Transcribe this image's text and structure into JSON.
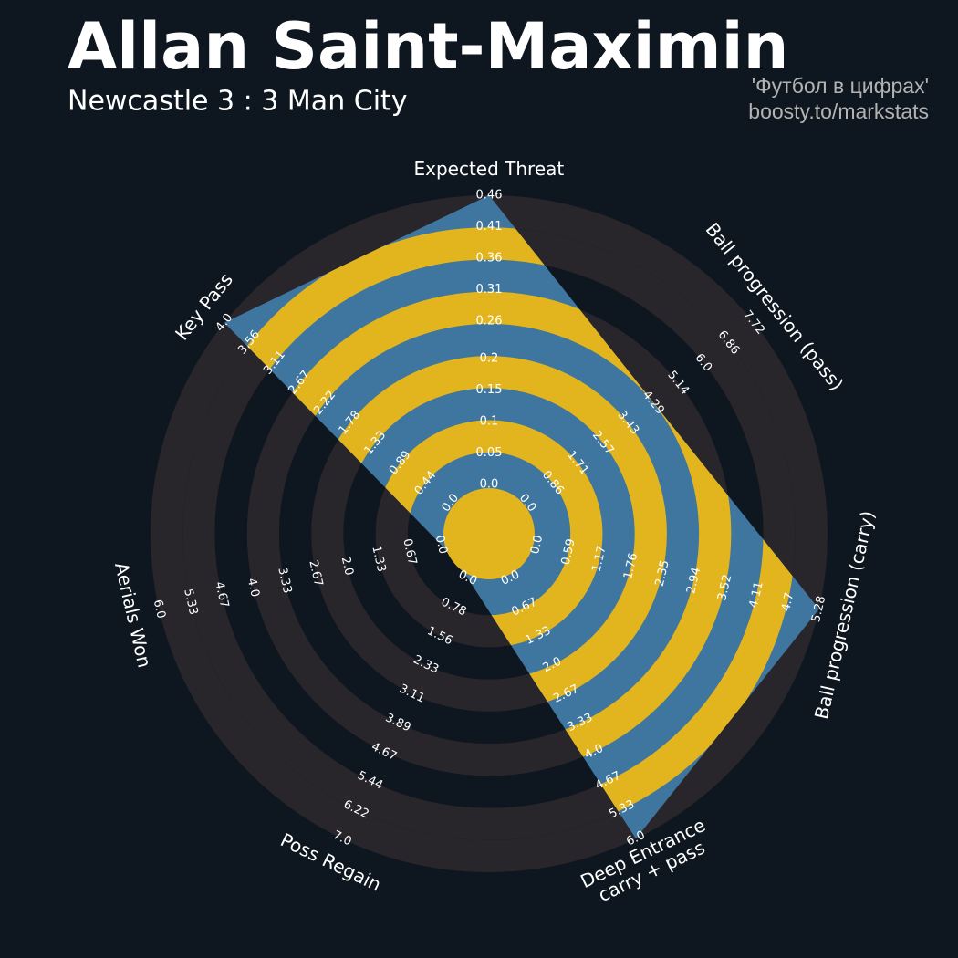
{
  "chart_data": {
    "type": "radar",
    "title": "Allan Saint-Maximin",
    "subtitle": "Newcastle 3 : 3 Man City",
    "credits": [
      "'Футбол в цифрах'",
      "boosty.to/markstats"
    ],
    "categories": [
      "Expected Threat",
      "Ball progression (pass)",
      "Ball progression (carry)",
      "Deep Entrance\ncarry + pass",
      "Poss Regain",
      "Aerials Won",
      "Key Pass"
    ],
    "values": [
      0.46,
      4.3,
      5.28,
      6.0,
      0,
      0,
      4.0
    ],
    "color": "#3f76a0",
    "ring_color": "#e2b41e",
    "lims": [
      [
        0,
        0.46
      ],
      [
        0,
        7.72
      ],
      [
        0,
        5.28
      ],
      [
        0,
        6
      ],
      [
        0,
        7
      ],
      [
        0,
        6
      ],
      [
        0,
        4
      ]
    ],
    "ticks": [
      [
        {
          "value": 0,
          "label": "0.0"
        },
        0.05,
        0.1,
        0.15,
        0.2,
        0.26,
        0.31,
        0.36,
        0.41,
        0.46
      ],
      [
        {
          "value": 0,
          "label": "0.0"
        },
        0.86,
        1.71,
        2.57,
        3.43,
        4.29,
        5.14,
        {
          "value": 6,
          "label": "6.0"
        },
        6.86,
        7.72
      ],
      [
        {
          "value": 0,
          "label": "0.0"
        },
        0.59,
        1.17,
        1.76,
        2.35,
        2.94,
        3.52,
        4.11,
        4.7,
        5.28
      ],
      [
        {
          "value": 0,
          "label": "0.0"
        },
        0.67,
        1.33,
        {
          "value": 2,
          "label": "2.0"
        },
        2.67,
        3.33,
        {
          "value": 4,
          "label": "4.0"
        },
        4.67,
        5.33,
        {
          "value": 6,
          "label": "6.0"
        }
      ],
      [
        {
          "value": 0,
          "label": "0.0"
        },
        0.78,
        1.56,
        2.33,
        3.11,
        3.89,
        4.67,
        5.44,
        6.22,
        {
          "value": 7,
          "label": "7.0"
        }
      ],
      [
        {
          "value": 0,
          "label": "0.0"
        },
        0.67,
        1.33,
        {
          "value": 2,
          "label": "2.0"
        },
        2.67,
        3.33,
        {
          "value": 4,
          "label": "4.0"
        },
        4.67,
        5.33,
        {
          "value": 6,
          "label": "6.0"
        }
      ],
      [
        {
          "value": 0,
          "label": "0.0"
        },
        0.44,
        0.89,
        1.33,
        1.78,
        2.22,
        2.67,
        3.11,
        3.56,
        {
          "value": 4,
          "label": "4.0"
        }
      ]
    ]
  }
}
